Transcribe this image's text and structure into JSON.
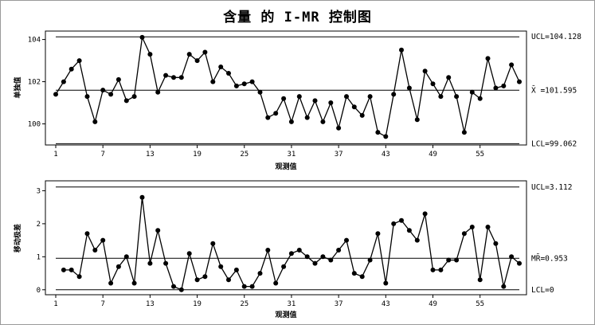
{
  "title": "含量 的 I-MR 控制图",
  "chart_data": [
    {
      "type": "line",
      "name": "individuals",
      "ylabel": "单独值",
      "xlabel": "观测值",
      "ylim": [
        99.0,
        104.4
      ],
      "yticks": [
        100,
        102,
        104
      ],
      "xticks": [
        1,
        7,
        13,
        19,
        25,
        31,
        37,
        43,
        49,
        55
      ],
      "x_range": [
        1,
        60
      ],
      "limits": {
        "ucl_value": 104.128,
        "ucl_label": "UCL=104.128",
        "center_value": 101.595,
        "center_label": "X̄ =101.595",
        "lcl_value": 99.062,
        "lcl_label": "LCL=99.062"
      },
      "values": [
        101.4,
        102.0,
        102.6,
        103.0,
        101.3,
        100.1,
        101.6,
        101.4,
        102.1,
        101.1,
        101.3,
        104.1,
        103.3,
        101.5,
        102.3,
        102.2,
        102.2,
        103.3,
        103.0,
        103.4,
        102.0,
        102.7,
        102.4,
        101.8,
        101.9,
        102.0,
        101.5,
        100.3,
        100.5,
        101.2,
        100.1,
        101.3,
        100.3,
        101.1,
        100.1,
        101.0,
        99.8,
        101.3,
        100.8,
        100.4,
        101.3,
        99.6,
        99.4,
        101.4,
        103.5,
        101.7,
        100.2,
        102.5,
        101.9,
        101.3,
        102.2,
        101.3,
        99.6,
        101.5,
        101.2,
        103.1,
        101.7,
        101.8,
        102.8,
        102.0
      ]
    },
    {
      "type": "line",
      "name": "moving-range",
      "ylabel": "移动极差",
      "xlabel": "观测值",
      "ylim": [
        -0.15,
        3.3
      ],
      "yticks": [
        0,
        1,
        2,
        3
      ],
      "xticks": [
        1,
        7,
        13,
        19,
        25,
        31,
        37,
        43,
        49,
        55
      ],
      "x_range": [
        1,
        60
      ],
      "limits": {
        "ucl_value": 3.112,
        "ucl_label": "UCL=3.112",
        "center_value": 0.953,
        "center_label": "MR̄=0.953",
        "lcl_value": 0,
        "lcl_label": "LCL=0"
      },
      "x": [
        2,
        3,
        4,
        5,
        6,
        7,
        8,
        9,
        10,
        11,
        12,
        13,
        14,
        15,
        16,
        17,
        18,
        19,
        20,
        21,
        22,
        23,
        24,
        25,
        26,
        27,
        28,
        29,
        30,
        31,
        32,
        33,
        34,
        35,
        36,
        37,
        38,
        39,
        40,
        41,
        42,
        43,
        44,
        45,
        46,
        47,
        48,
        49,
        50,
        51,
        52,
        53,
        54,
        55,
        56,
        57,
        58,
        59,
        60
      ],
      "values": [
        0.6,
        0.6,
        0.4,
        1.7,
        1.2,
        1.5,
        0.2,
        0.7,
        1.0,
        0.2,
        2.8,
        0.8,
        1.8,
        0.8,
        0.1,
        0.0,
        1.1,
        0.3,
        0.4,
        1.4,
        0.7,
        0.3,
        0.6,
        0.1,
        0.1,
        0.5,
        1.2,
        0.2,
        0.7,
        1.1,
        1.2,
        1.0,
        0.8,
        1.0,
        0.9,
        1.2,
        1.5,
        0.5,
        0.4,
        0.9,
        1.7,
        0.2,
        2.0,
        2.1,
        1.8,
        1.5,
        2.3,
        0.6,
        0.6,
        0.9,
        0.9,
        1.7,
        1.9,
        0.3,
        1.9,
        1.4,
        0.1,
        1.0,
        0.8
      ]
    }
  ]
}
